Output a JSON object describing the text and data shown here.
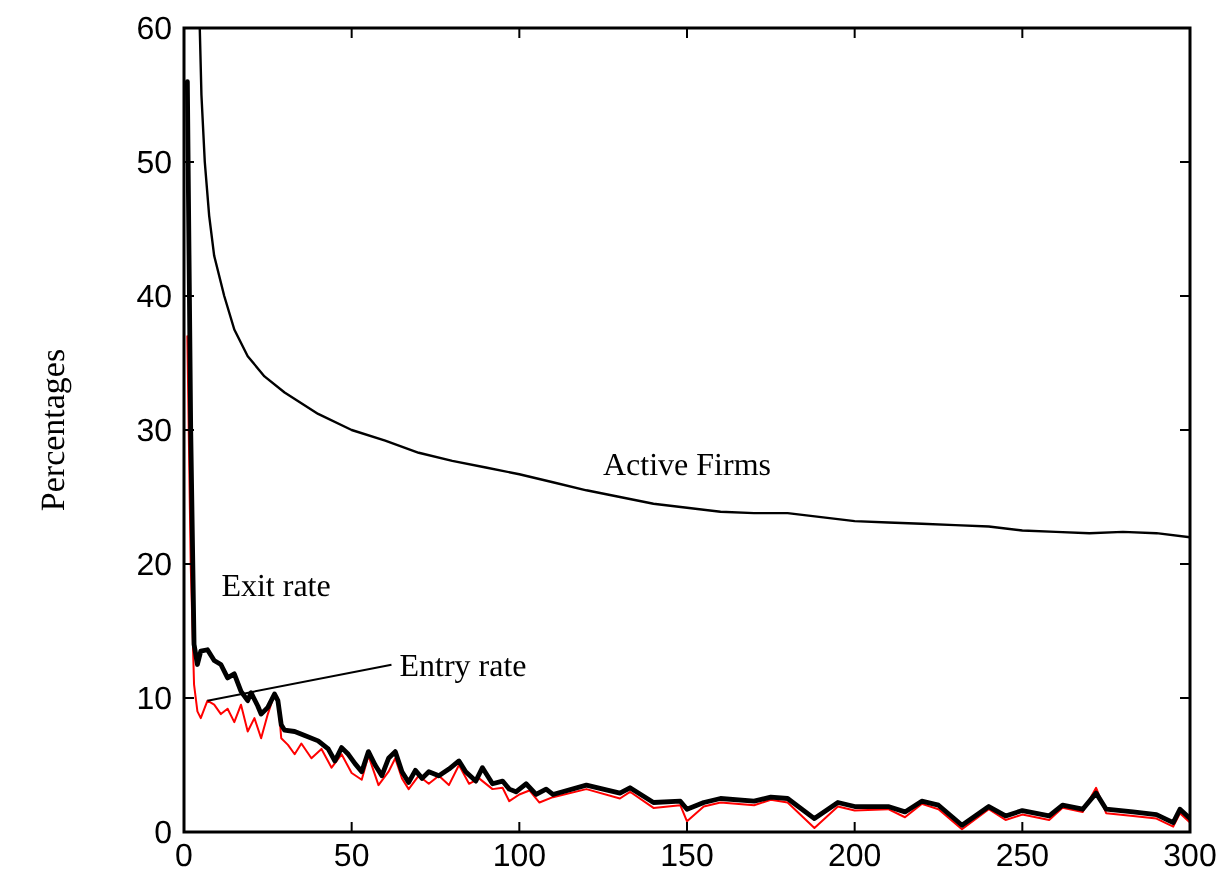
{
  "chart_data": {
    "type": "line",
    "ylabel": "Percentages",
    "xlim": [
      0,
      300
    ],
    "ylim": [
      0,
      60
    ],
    "xticks": [
      0,
      50,
      100,
      150,
      200,
      250,
      300
    ],
    "yticks": [
      0,
      10,
      20,
      30,
      40,
      50,
      60
    ],
    "grid": false,
    "line_style": "solid",
    "series": [
      {
        "name": "Active Firms",
        "color": "#000000",
        "x": [
          4.7,
          5.2,
          6.2,
          7.5,
          9,
          12,
          15,
          19,
          24,
          30,
          40,
          50,
          60,
          70,
          80,
          90,
          100,
          110,
          120,
          130,
          140,
          150,
          160,
          170,
          180,
          190,
          200,
          210,
          220,
          230,
          240,
          250,
          260,
          270,
          280,
          290,
          300
        ],
        "values": [
          60,
          55,
          50,
          46,
          43,
          40,
          37.5,
          35.5,
          34,
          32.8,
          31.2,
          30,
          29.2,
          28.3,
          27.7,
          27.2,
          26.7,
          26.1,
          25.5,
          25,
          24.5,
          24.2,
          23.9,
          23.8,
          23.8,
          23.5,
          23.2,
          23.1,
          23,
          22.9,
          22.8,
          22.5,
          22.4,
          22.3,
          22.4,
          22.3,
          22
        ]
      },
      {
        "name": "Entry rate",
        "color": "#ff0000",
        "x": [
          1,
          2,
          3,
          4,
          5,
          7,
          9,
          11,
          13,
          15,
          17,
          19,
          21,
          23,
          25,
          27,
          28,
          29,
          31,
          33,
          35,
          38,
          41,
          44,
          47,
          50,
          53,
          55,
          58,
          61,
          63,
          65,
          67,
          70,
          73,
          76,
          79,
          82,
          85,
          88,
          92,
          95,
          97,
          100,
          103,
          106,
          110,
          120,
          130,
          133,
          140,
          148,
          150,
          155,
          160,
          170,
          175,
          180,
          188,
          195,
          200,
          210,
          215,
          220,
          225,
          232,
          240,
          245,
          250,
          258,
          262,
          268,
          272,
          275,
          283,
          290,
          295,
          297,
          300
        ],
        "values": [
          37,
          20,
          11,
          9,
          8.5,
          9.8,
          9.5,
          8.8,
          9.2,
          8.2,
          9.5,
          7.5,
          8.5,
          7,
          8.8,
          10.3,
          10,
          7,
          6.5,
          5.8,
          6.6,
          5.5,
          6.2,
          4.8,
          5.8,
          4.4,
          3.9,
          5.7,
          3.5,
          4.5,
          5.5,
          4,
          3.2,
          4.2,
          3.6,
          4.2,
          3.5,
          5,
          3.6,
          4,
          3.2,
          3.3,
          2.3,
          2.8,
          3.1,
          2.2,
          2.6,
          3.2,
          2.5,
          3,
          1.8,
          2,
          0.8,
          1.9,
          2.2,
          2,
          2.4,
          2.2,
          0.3,
          1.9,
          1.6,
          1.7,
          1.1,
          2.1,
          1.7,
          0.2,
          1.7,
          0.9,
          1.3,
          0.9,
          1.8,
          1.5,
          3.3,
          1.4,
          1.2,
          1,
          0.4,
          1.4,
          0.7
        ]
      },
      {
        "name": "Exit rate",
        "color": "#000000",
        "x": [
          1,
          2,
          3,
          4,
          5,
          7,
          9,
          11,
          13,
          15,
          17,
          19,
          20,
          22,
          23,
          25,
          27,
          28,
          29,
          30,
          33,
          36,
          40,
          43,
          45,
          47,
          49,
          51,
          53,
          55,
          57,
          59,
          61,
          63,
          65,
          67,
          69,
          71,
          73,
          76,
          79,
          82,
          84,
          87,
          89,
          92,
          95,
          97,
          99,
          102,
          105,
          108,
          110,
          120,
          130,
          133,
          140,
          148,
          150,
          155,
          160,
          170,
          175,
          180,
          188,
          195,
          200,
          210,
          215,
          220,
          225,
          232,
          240,
          245,
          250,
          258,
          262,
          268,
          272,
          275,
          283,
          290,
          295,
          297,
          300
        ],
        "values": [
          56,
          30,
          14,
          12.5,
          13.5,
          13.6,
          12.8,
          12.5,
          11.5,
          11.8,
          10.5,
          9.8,
          10.4,
          9.4,
          8.8,
          9.3,
          10.3,
          9.8,
          8,
          7.6,
          7.5,
          7.2,
          6.8,
          6.2,
          5.3,
          6.3,
          5.8,
          5.1,
          4.5,
          6,
          5,
          4.2,
          5.5,
          6,
          4.5,
          3.7,
          4.6,
          4,
          4.5,
          4.2,
          4.7,
          5.3,
          4.5,
          3.8,
          4.8,
          3.6,
          3.8,
          3.2,
          3,
          3.6,
          2.8,
          3.2,
          2.8,
          3.5,
          2.9,
          3.3,
          2.2,
          2.3,
          1.7,
          2.2,
          2.5,
          2.3,
          2.6,
          2.5,
          1,
          2.2,
          1.9,
          1.9,
          1.5,
          2.3,
          2,
          0.5,
          1.9,
          1.2,
          1.6,
          1.2,
          2,
          1.7,
          2.9,
          1.7,
          1.5,
          1.3,
          0.7,
          1.7,
          1
        ]
      }
    ]
  }
}
